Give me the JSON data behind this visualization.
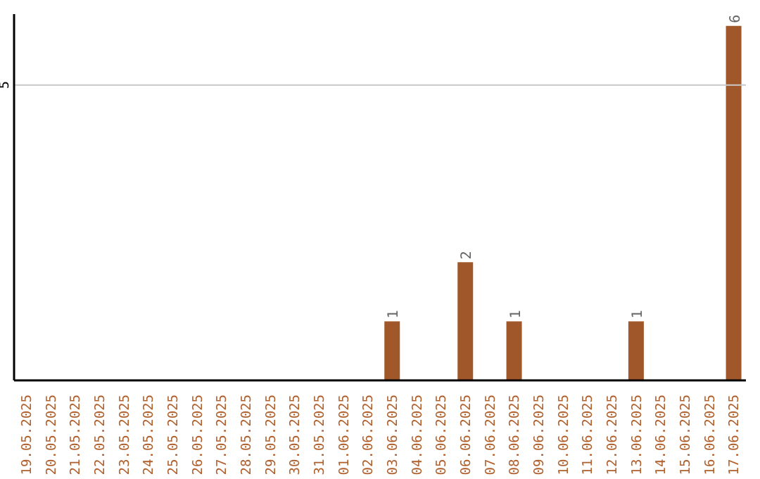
{
  "chart_data": {
    "type": "bar",
    "categories": [
      "19.05.2025",
      "20.05.2025",
      "21.05.2025",
      "22.05.2025",
      "23.05.2025",
      "24.05.2025",
      "25.05.2025",
      "26.05.2025",
      "27.05.2025",
      "28.05.2025",
      "29.05.2025",
      "30.05.2025",
      "31.05.2025",
      "01.06.2025",
      "02.06.2025",
      "03.06.2025",
      "04.06.2025",
      "05.06.2025",
      "06.06.2025",
      "07.06.2025",
      "08.06.2025",
      "09.06.2025",
      "10.06.2025",
      "11.06.2025",
      "12.06.2025",
      "13.06.2025",
      "14.06.2025",
      "15.06.2025",
      "16.06.2025",
      "17.06.2025"
    ],
    "values": [
      null,
      null,
      null,
      null,
      null,
      null,
      null,
      null,
      null,
      null,
      null,
      null,
      null,
      null,
      null,
      1,
      null,
      null,
      2,
      null,
      1,
      null,
      null,
      null,
      null,
      1,
      null,
      null,
      null,
      6
    ],
    "data_labels": true,
    "color": "#a0582a",
    "ylim": [
      0,
      6.2
    ],
    "legend": false,
    "ref_lines": [
      {
        "axis": "y",
        "value": 5,
        "label": "5",
        "color": "#c8c8c8"
      }
    ]
  }
}
